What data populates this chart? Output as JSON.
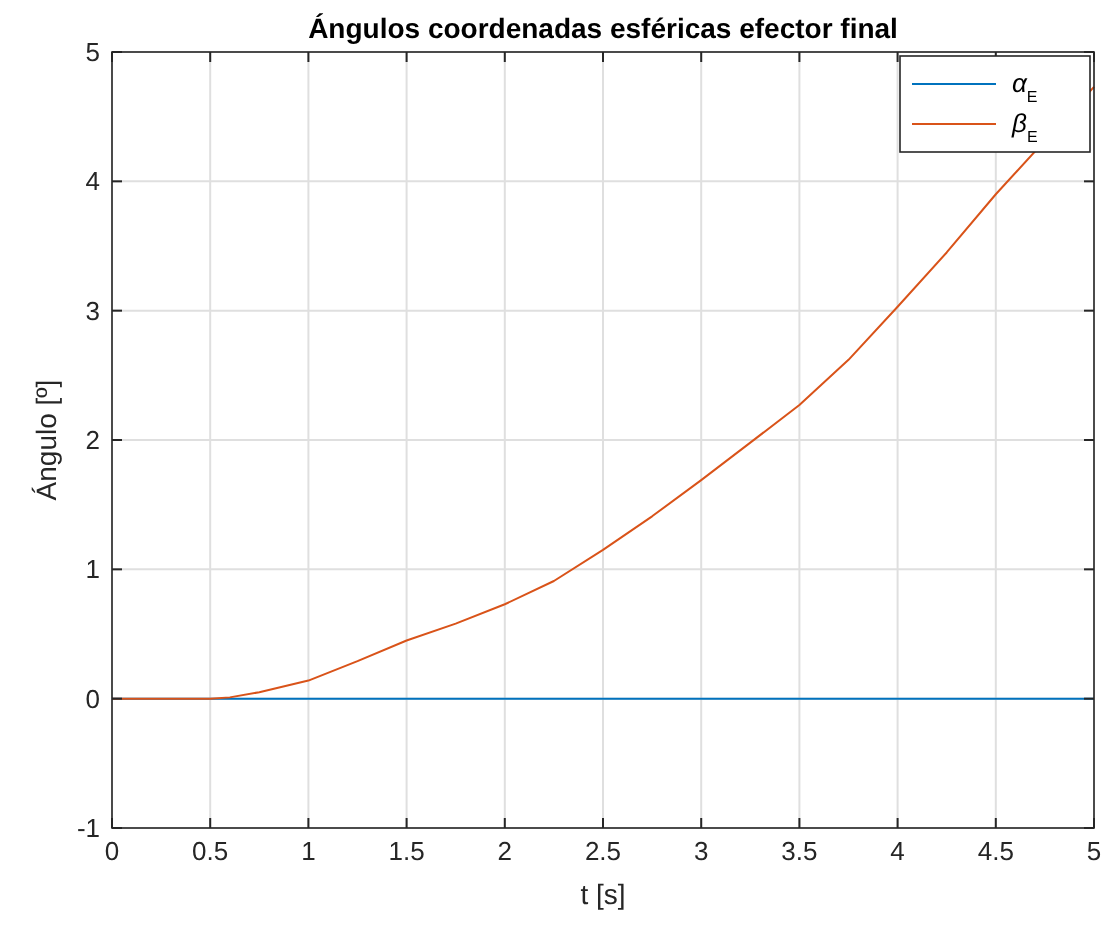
{
  "chart_data": {
    "type": "line",
    "title": "Ángulos coordenadas esféricas efector final",
    "xlabel": "t [s]",
    "ylabel": "Ángulo [º]",
    "x": [
      0,
      0.25,
      0.5,
      0.6,
      0.75,
      1,
      1.25,
      1.5,
      1.75,
      2,
      2.25,
      2.5,
      2.75,
      3,
      3.25,
      3.5,
      3.75,
      4,
      4.25,
      4.5,
      5
    ],
    "series": [
      {
        "name": "α$_{E}$",
        "color": "#0072bd",
        "values": [
          0,
          0,
          0,
          0,
          0,
          0,
          0,
          0,
          0,
          0,
          0,
          0,
          0,
          0,
          0,
          0,
          0,
          0,
          0,
          0,
          0
        ]
      },
      {
        "name": "β$_{E}$",
        "color": "#d95319",
        "values": [
          0,
          0,
          0,
          0.01,
          0.05,
          0.14,
          0.29,
          0.45,
          0.58,
          0.73,
          0.91,
          1.15,
          1.41,
          1.69,
          1.98,
          2.27,
          2.62,
          3.03,
          3.45,
          3.9,
          4.73
        ]
      }
    ],
    "xlim": [
      0,
      5
    ],
    "ylim": [
      -1,
      5
    ],
    "xticks": [
      0,
      0.5,
      1,
      1.5,
      2,
      2.5,
      3,
      3.5,
      4,
      4.5,
      5
    ],
    "yticks": [
      -1,
      0,
      1,
      2,
      3,
      4,
      5
    ],
    "grid": true,
    "legend": "top right",
    "line_style": "solid",
    "marker": "none"
  }
}
